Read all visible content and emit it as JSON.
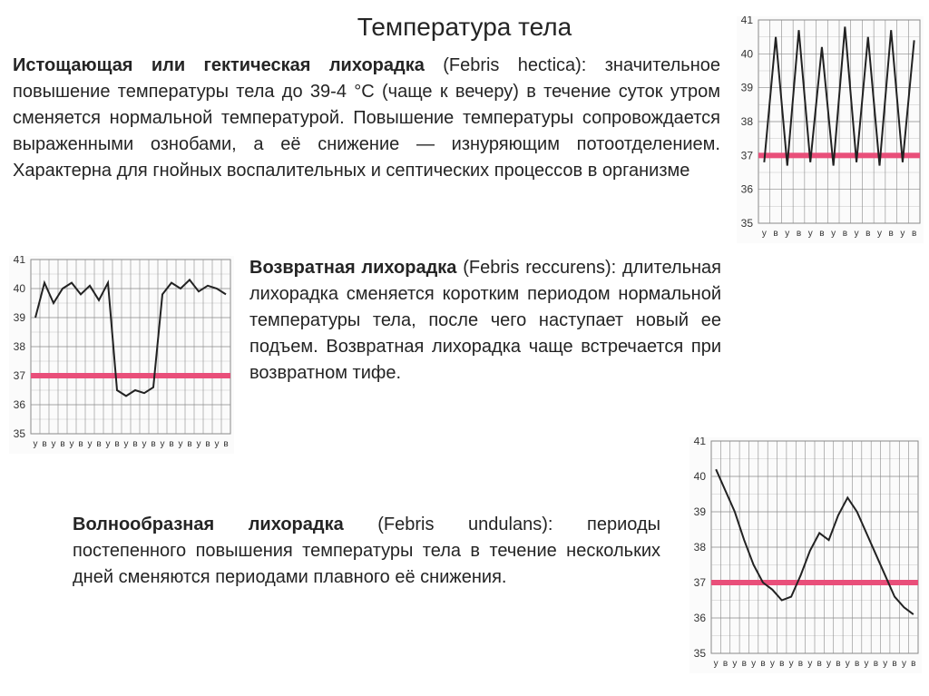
{
  "title": "Температура тела",
  "para1_bold": "Истощающая или гектическая лихорадка",
  "para1_rest": " (Febris hectica): значительное повышение температуры тела до 39-4 °С (чаще к вечеру) в течение суток утром сменяется нормальной температурой. Повышение температуры сопровождается выраженными ознобами, а её снижение — изнуряющим потоотделением.  Характерна для гнойных воспалительных и септических процессов в организме",
  "para2_bold": "Возвратная лихорадка",
  "para2_rest": " (Febris reccurens): длительная лихорадка сменяется коротким периодом нормальной температуры тела, после чего наступает новый ее подъем. Возвратная лихорадка чаще встречается при возвратном тифе.",
  "para3_bold": "Волнообразная лихорадка",
  "para3_rest": " (Febris undulans): периоды постепенного повышения температуры тела в течение нескольких дней сменяются периодами плавного её снижения.",
  "charts": {
    "common": {
      "y_labels": [
        "41",
        "40",
        "39",
        "38",
        "37",
        "36",
        "35"
      ],
      "y_range": [
        35,
        41
      ],
      "x_labels_pair": [
        "у",
        "в"
      ],
      "grid_color": "#8a8a8a",
      "grid_light": "#c7c7c7",
      "line_color": "#222222",
      "band_color": "#e94f7a",
      "bg": "#fbfbfb",
      "label_color": "#333333",
      "label_fontsize": 12
    },
    "hectic": {
      "cols": 14,
      "points": [
        36.8,
        40.5,
        36.7,
        40.7,
        36.8,
        40.2,
        36.7,
        40.8,
        36.8,
        40.5,
        36.7,
        40.7,
        36.8,
        40.4
      ]
    },
    "recurrent": {
      "cols": 22,
      "points": [
        39.0,
        40.2,
        39.5,
        40.0,
        40.2,
        39.8,
        40.1,
        39.6,
        40.2,
        36.5,
        36.3,
        36.5,
        36.4,
        36.6,
        39.8,
        40.2,
        40.0,
        40.3,
        39.9,
        40.1,
        40.0,
        39.8
      ]
    },
    "undulant": {
      "cols": 22,
      "points": [
        40.2,
        39.6,
        39.0,
        38.2,
        37.5,
        37.0,
        36.8,
        36.5,
        36.6,
        37.2,
        37.9,
        38.4,
        38.2,
        38.9,
        39.4,
        39.0,
        38.4,
        37.8,
        37.2,
        36.6,
        36.3,
        36.1
      ]
    }
  }
}
